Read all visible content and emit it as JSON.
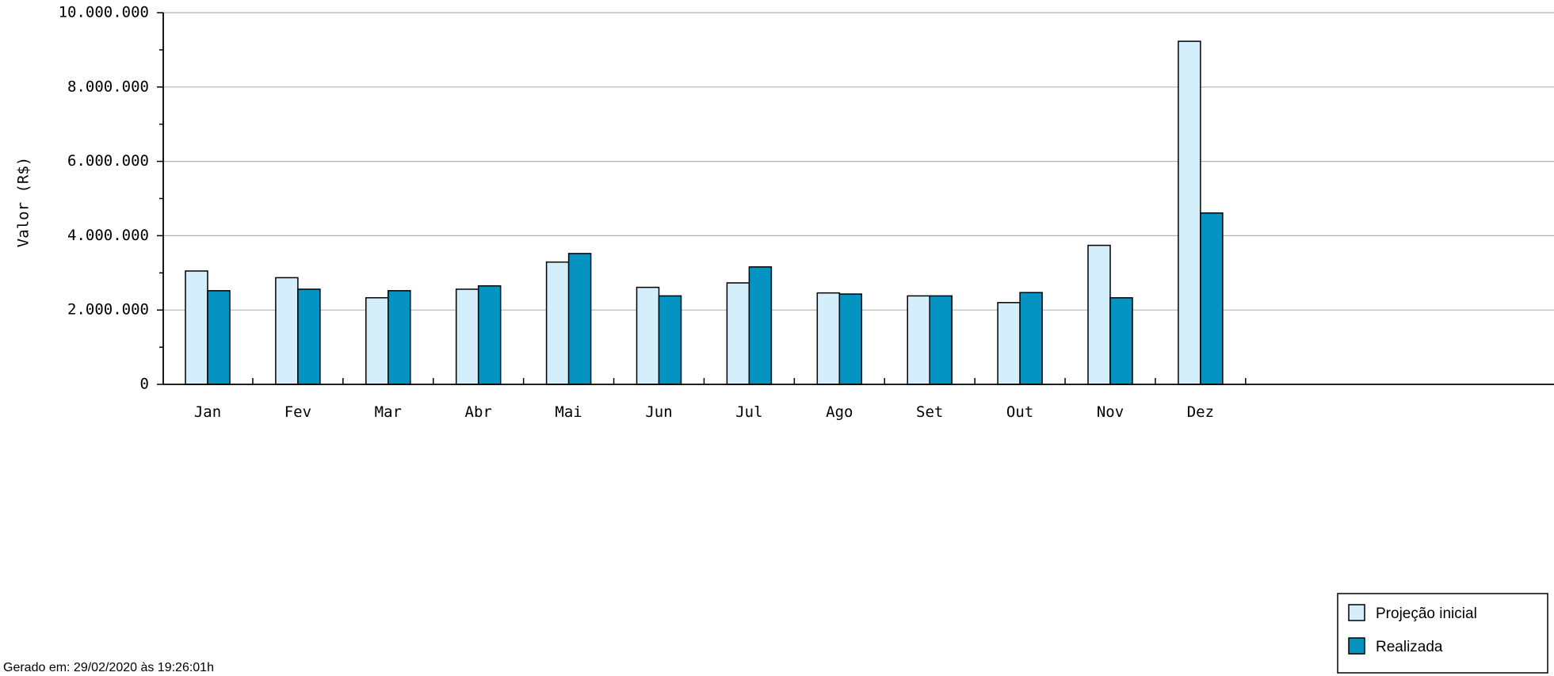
{
  "chart_data": {
    "type": "bar",
    "title": "",
    "ylabel": "Valor (R$)",
    "xlabel": "",
    "ylim": [
      0,
      10000000
    ],
    "yticks": [
      {
        "value": 0,
        "label": "0"
      },
      {
        "value": 2000000,
        "label": "2.000.000"
      },
      {
        "value": 4000000,
        "label": "4.000.000"
      },
      {
        "value": 6000000,
        "label": "6.000.000"
      },
      {
        "value": 8000000,
        "label": "8.000.000"
      },
      {
        "value": 10000000,
        "label": "10.000.000"
      }
    ],
    "grid": true,
    "categories": [
      "Jan",
      "Fev",
      "Mar",
      "Abr",
      "Mai",
      "Jun",
      "Jul",
      "Ago",
      "Set",
      "Out",
      "Nov",
      "Dez"
    ],
    "series": [
      {
        "name": "Projeção inicial",
        "color": "#d4eefb",
        "values": [
          3050000,
          2870000,
          2330000,
          2560000,
          3290000,
          2610000,
          2730000,
          2460000,
          2380000,
          2200000,
          3740000,
          9230000
        ]
      },
      {
        "name": "Realizada",
        "color": "#0593c2",
        "values": [
          2520000,
          2560000,
          2520000,
          2650000,
          3520000,
          2380000,
          3160000,
          2430000,
          2380000,
          2470000,
          2330000,
          4610000
        ]
      }
    ],
    "legend_position": "bottom-right"
  },
  "footer": {
    "generated": "Gerado em: 29/02/2020 às 19:26:01h"
  }
}
